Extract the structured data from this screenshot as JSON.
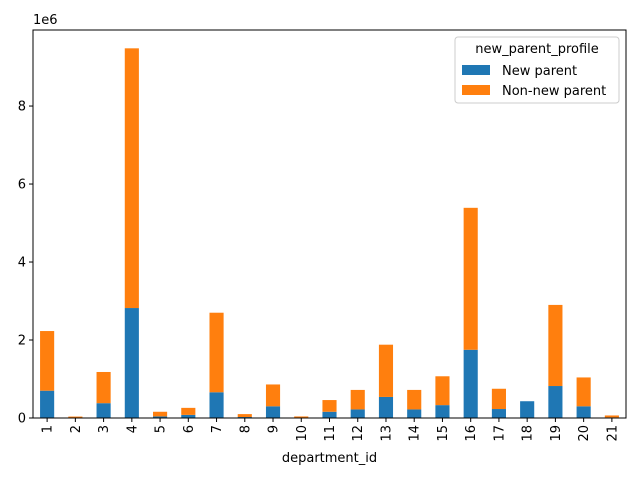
{
  "chart_data": {
    "type": "bar",
    "stacked": true,
    "title": "",
    "xlabel": "department_id",
    "ylabel": "",
    "offset_text": "1e6",
    "categories": [
      "1",
      "2",
      "3",
      "4",
      "5",
      "6",
      "7",
      "8",
      "9",
      "10",
      "11",
      "12",
      "13",
      "14",
      "15",
      "16",
      "17",
      "18",
      "19",
      "20",
      "21"
    ],
    "ylim": [
      0,
      9950000
    ],
    "yticks": [
      0,
      2000000,
      4000000,
      6000000,
      8000000
    ],
    "ytick_labels": [
      "0",
      "2",
      "4",
      "6",
      "8"
    ],
    "legend": {
      "title": "new_parent_profile",
      "placement": "top-right"
    },
    "series": [
      {
        "name": "New parent",
        "color": "#1f77b4",
        "values": [
          700000,
          12000,
          380000,
          2820000,
          40000,
          80000,
          660000,
          25000,
          300000,
          10000,
          160000,
          220000,
          540000,
          220000,
          330000,
          1750000,
          230000,
          430000,
          820000,
          300000,
          15000
        ]
      },
      {
        "name": "Non-new parent",
        "color": "#ff7f0e",
        "values": [
          1530000,
          25000,
          800000,
          6660000,
          120000,
          180000,
          2040000,
          75000,
          560000,
          30000,
          300000,
          500000,
          1340000,
          500000,
          740000,
          3640000,
          520000,
          0,
          2080000,
          740000,
          50000
        ]
      }
    ]
  }
}
